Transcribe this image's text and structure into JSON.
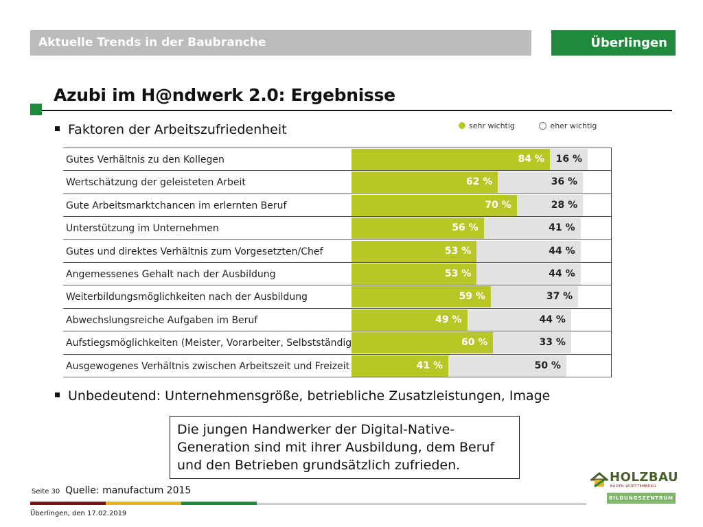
{
  "header": {
    "title": "Aktuelle Trends in der Baubranche",
    "location": "Überlingen"
  },
  "page_title": "Azubi im H@ndwerk 2.0: Ergebnisse",
  "bullets": {
    "first": "Faktoren der Arbeitszufriedenheit",
    "second": "Unbedeutend: Unternehmensgröße, betriebliche Zusatzleistungen, Image"
  },
  "legend": {
    "a": "sehr wichtig",
    "b": "eher wichtig"
  },
  "colors": {
    "accent_green": "#1f8a3c",
    "bar_very_important": "#b8c626",
    "bar_rather_important": "#e2e2e2"
  },
  "chart_data": {
    "type": "bar",
    "orientation": "horizontal",
    "stacked": true,
    "categories": [
      "Gutes Verhältnis zu den Kollegen",
      "Wertschätzung der geleisteten Arbeit",
      "Gute Arbeitsmarktchancen im erlernten Beruf",
      "Unterstützung im Unternehmen",
      "Gutes und direktes Verhältnis zum Vorgesetzten/Chef",
      "Angemessenes Gehalt nach der Ausbildung",
      "Weiterbildungsmöglichkeiten nach der Ausbildung",
      "Abwechslungsreiche Aufgaben im Beruf",
      "Aufstiegsmöglichkeiten (Meister, Vorarbeiter, Selbstständigkeit)",
      "Ausgewogenes Verhältnis zwischen Arbeitszeit und Freizeit"
    ],
    "series": [
      {
        "name": "sehr wichtig",
        "values": [
          84,
          62,
          70,
          56,
          53,
          53,
          59,
          49,
          60,
          41
        ]
      },
      {
        "name": "eher wichtig",
        "values": [
          16,
          36,
          28,
          41,
          44,
          44,
          37,
          44,
          33,
          50
        ]
      }
    ],
    "xlim": [
      0,
      100
    ],
    "unit": "%",
    "legend_position": "top-right"
  },
  "conclusion": "Die jungen Handwerker der Digital-Native-Generation sind mit ihrer Ausbildung, dem Beruf und den Betrieben grundsätzlich zufrieden.",
  "footer": {
    "page": "Seite 30",
    "source": "Quelle: manufactum 2015",
    "date": "Überlingen, den 17.02.2019"
  },
  "logo": {
    "name": "HOLZBAU",
    "sub": "BADEN-WÜRTTEMBERG",
    "band": "BILDUNGSZENTRUM"
  }
}
